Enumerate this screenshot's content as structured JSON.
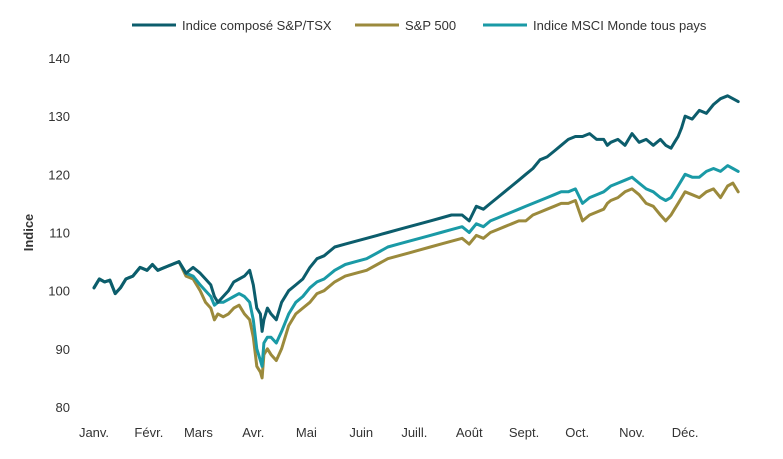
{
  "chart_data": {
    "type": "line",
    "title": "",
    "xlabel": "",
    "ylabel": "Indice",
    "ylim": [
      80,
      140
    ],
    "yticks": [
      80,
      90,
      100,
      110,
      120,
      130,
      140
    ],
    "xlim": [
      0,
      365
    ],
    "grid": false,
    "legend_position": "top",
    "months": [
      {
        "label": "Janv.",
        "day": 0
      },
      {
        "label": "Févr.",
        "day": 31
      },
      {
        "label": "Mars",
        "day": 59
      },
      {
        "label": "Avr.",
        "day": 90
      },
      {
        "label": "Mai",
        "day": 120
      },
      {
        "label": "Juin",
        "day": 151
      },
      {
        "label": "Juill.",
        "day": 181
      },
      {
        "label": "Août",
        "day": 212
      },
      {
        "label": "Sept.",
        "day": 243
      },
      {
        "label": "Oct.",
        "day": 273
      },
      {
        "label": "Nov.",
        "day": 304
      },
      {
        "label": "Déc.",
        "day": 334
      }
    ],
    "series": [
      {
        "name": "Indice composé S&P/TSX",
        "color": "#0c5d6c",
        "x": [
          0,
          3,
          6,
          9,
          12,
          15,
          18,
          22,
          26,
          30,
          33,
          36,
          40,
          44,
          48,
          52,
          56,
          60,
          63,
          66,
          68,
          70,
          73,
          76,
          79,
          82,
          85,
          88,
          90,
          92,
          94,
          95,
          96,
          98,
          100,
          103,
          106,
          110,
          114,
          118,
          122,
          126,
          130,
          136,
          142,
          148,
          154,
          160,
          166,
          172,
          178,
          184,
          190,
          196,
          202,
          208,
          212,
          216,
          220,
          224,
          228,
          232,
          236,
          240,
          244,
          248,
          252,
          256,
          260,
          264,
          268,
          272,
          276,
          280,
          284,
          288,
          290,
          292,
          296,
          300,
          304,
          308,
          312,
          316,
          320,
          323,
          326,
          328,
          330,
          332,
          334,
          338,
          342,
          346,
          350,
          354,
          358,
          361,
          364
        ],
        "y": [
          100.5,
          102,
          101.5,
          101.8,
          99.5,
          100.5,
          102,
          102.5,
          104,
          103.5,
          104.5,
          103.5,
          104,
          104.5,
          105,
          103,
          104,
          103,
          102,
          101,
          99,
          98,
          99,
          100,
          101.5,
          102,
          102.5,
          103.5,
          101,
          97,
          96,
          93,
          95,
          97,
          96,
          95,
          98,
          100,
          101,
          102,
          104,
          105.5,
          106,
          107.5,
          108,
          108.5,
          109,
          109.5,
          110,
          110.5,
          111,
          111.5,
          112,
          112.5,
          113,
          113,
          112,
          114.5,
          114,
          115,
          116,
          117,
          118,
          119,
          120,
          121,
          122.5,
          123,
          124,
          125,
          126,
          126.5,
          126.5,
          127,
          126,
          126,
          125,
          125.5,
          126,
          125,
          127,
          125.5,
          126,
          125,
          126,
          125,
          124.5,
          125.5,
          126.5,
          128,
          130,
          129.5,
          131,
          130.5,
          132,
          133,
          133.5,
          133,
          132.5
        ]
      },
      {
        "name": "S&P 500",
        "color": "#9b8a3c",
        "x": [
          0,
          3,
          6,
          9,
          12,
          15,
          18,
          22,
          26,
          30,
          33,
          36,
          40,
          44,
          48,
          52,
          56,
          60,
          63,
          66,
          68,
          70,
          73,
          76,
          79,
          82,
          85,
          88,
          90,
          92,
          94,
          95,
          96,
          98,
          100,
          103,
          106,
          110,
          114,
          118,
          122,
          126,
          130,
          136,
          142,
          148,
          154,
          160,
          166,
          172,
          178,
          184,
          190,
          196,
          202,
          208,
          212,
          216,
          220,
          224,
          228,
          232,
          236,
          240,
          244,
          248,
          252,
          256,
          260,
          264,
          268,
          272,
          276,
          280,
          284,
          288,
          290,
          292,
          296,
          300,
          304,
          308,
          312,
          316,
          320,
          323,
          326,
          328,
          330,
          332,
          334,
          338,
          342,
          346,
          350,
          354,
          358,
          361,
          364
        ],
        "y": [
          100.5,
          102,
          101.5,
          101.8,
          99.5,
          100.5,
          102,
          102.5,
          104,
          103.5,
          104.5,
          103.5,
          104,
          104.5,
          105,
          102.5,
          102,
          100,
          98,
          97,
          95,
          96,
          95.5,
          96,
          97,
          97.5,
          96,
          95,
          92,
          87,
          86,
          85,
          89,
          90,
          89,
          88,
          90,
          94,
          96,
          97,
          98,
          99.5,
          100,
          101.5,
          102.5,
          103,
          103.5,
          104.5,
          105.5,
          106,
          106.5,
          107,
          107.5,
          108,
          108.5,
          109,
          108,
          109.5,
          109,
          110,
          110.5,
          111,
          111.5,
          112,
          112,
          113,
          113.5,
          114,
          114.5,
          115,
          115,
          115.5,
          112,
          113,
          113.5,
          114,
          115,
          115.5,
          116,
          117,
          117.5,
          116.5,
          115,
          114.5,
          113,
          112,
          113,
          114,
          115,
          116,
          117,
          116.5,
          116,
          117,
          117.5,
          116,
          118,
          118.5,
          117
        ]
      },
      {
        "name": "Indice MSCI Monde tous pays",
        "color": "#1a9aa6",
        "x": [
          0,
          3,
          6,
          9,
          12,
          15,
          18,
          22,
          26,
          30,
          33,
          36,
          40,
          44,
          48,
          52,
          56,
          60,
          63,
          66,
          68,
          70,
          73,
          76,
          79,
          82,
          85,
          88,
          90,
          92,
          94,
          95,
          96,
          98,
          100,
          103,
          106,
          110,
          114,
          118,
          122,
          126,
          130,
          136,
          142,
          148,
          154,
          160,
          166,
          172,
          178,
          184,
          190,
          196,
          202,
          208,
          212,
          216,
          220,
          224,
          228,
          232,
          236,
          240,
          244,
          248,
          252,
          256,
          260,
          264,
          268,
          272,
          276,
          280,
          284,
          288,
          290,
          292,
          296,
          300,
          304,
          308,
          312,
          316,
          320,
          323,
          326,
          328,
          330,
          332,
          334,
          338,
          342,
          346,
          350,
          354,
          358,
          361,
          364
        ],
        "y": [
          100.5,
          102,
          101.5,
          101.8,
          99.5,
          100.5,
          102,
          102.5,
          104,
          103.5,
          104.5,
          103.5,
          104,
          104.5,
          105,
          103,
          102.5,
          101,
          100,
          99,
          97.5,
          98,
          98,
          98.5,
          99,
          99.5,
          99,
          98,
          95,
          90,
          88,
          87,
          91,
          92,
          92,
          91,
          93,
          96,
          98,
          99,
          100.5,
          101.5,
          102,
          103.5,
          104.5,
          105,
          105.5,
          106.5,
          107.5,
          108,
          108.5,
          109,
          109.5,
          110,
          110.5,
          111,
          110,
          111.5,
          111,
          112,
          112.5,
          113,
          113.5,
          114,
          114.5,
          115,
          115.5,
          116,
          116.5,
          117,
          117,
          117.5,
          115,
          116,
          116.5,
          117,
          117.5,
          118,
          118.5,
          119,
          119.5,
          118.5,
          117.5,
          117,
          116,
          115.5,
          116,
          117,
          118,
          119,
          120,
          119.5,
          119.5,
          120.5,
          121,
          120.5,
          121.5,
          121,
          120.5
        ]
      }
    ]
  }
}
